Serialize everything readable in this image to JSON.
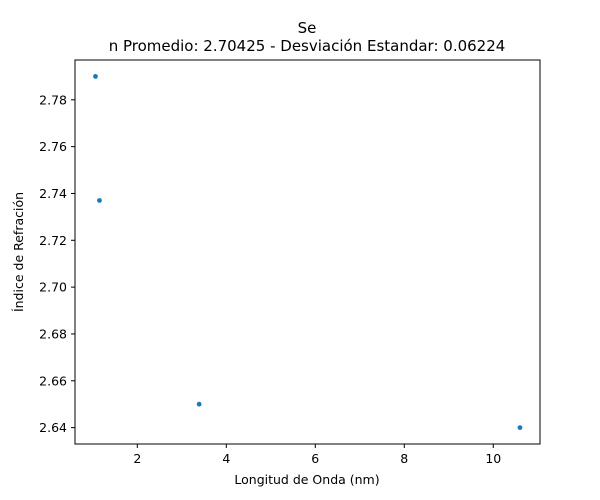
{
  "chart_data": {
    "type": "scatter",
    "title": "Se",
    "subtitle": "n Promedio: 2.70425 - Desviación Estandar: 0.06224",
    "xlabel": "Longitud de Onda (nm)",
    "ylabel": "Índice de Refración",
    "xlim": [
      0.6,
      11.05
    ],
    "ylim": [
      2.633,
      2.797
    ],
    "xticks": [
      2,
      4,
      6,
      8,
      10
    ],
    "yticks": [
      2.64,
      2.66,
      2.68,
      2.7,
      2.72,
      2.74,
      2.76,
      2.78
    ],
    "ytick_labels": [
      "2.64",
      "2.66",
      "2.68",
      "2.70",
      "2.72",
      "2.74",
      "2.76",
      "2.78"
    ],
    "grid": false,
    "series": [
      {
        "color": "#1f77b4",
        "x": [
          1.06,
          1.15,
          3.39,
          10.6
        ],
        "y": [
          2.79,
          2.737,
          2.65,
          2.64
        ]
      }
    ]
  }
}
